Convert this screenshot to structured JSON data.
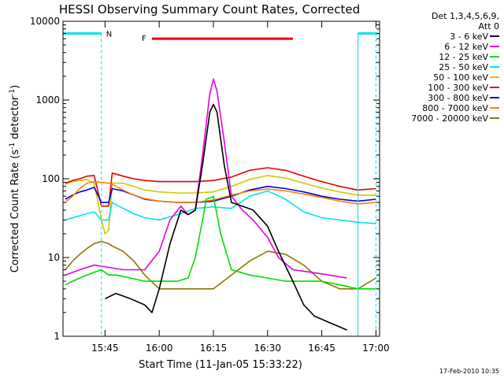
{
  "chart_data": {
    "type": "line",
    "title": "HESSI Observing Summary Count Rates, Corrected",
    "xlabel": "Start Time (11-Jan-05 15:33:22)",
    "ylabel_main": "Corrected Count Rate (s",
    "ylabel_exp1": "-1",
    "ylabel_mid": " detector",
    "ylabel_exp2": "-1",
    "ylabel_end": ")",
    "y_scale": "log",
    "ylim": [
      1,
      10000
    ],
    "xlim": [
      "15:33:22",
      "17:01:00"
    ],
    "y_ticks": [
      {
        "value": 1,
        "label": "1"
      },
      {
        "value": 10,
        "label": "10"
      },
      {
        "value": 100,
        "label": "100"
      },
      {
        "value": 1000,
        "label": "1000"
      },
      {
        "value": 10000,
        "label": "10000"
      }
    ],
    "x_ticks": [
      {
        "value": "15:45",
        "label": "15:45"
      },
      {
        "value": "16:00",
        "label": "16:00"
      },
      {
        "value": "16:15",
        "label": "16:15"
      },
      {
        "value": "16:30",
        "label": "16:30"
      },
      {
        "value": "16:45",
        "label": "16:45"
      },
      {
        "value": "17:00",
        "label": "17:00"
      }
    ],
    "legend": {
      "position": "right",
      "header_line1": "Det 1,3,4,5,6,9,",
      "header_line2": "Att 0",
      "entries": [
        {
          "label": "3 - 6 keV",
          "color": "#000000"
        },
        {
          "label": "6 - 12 keV",
          "color": "#e100e1"
        },
        {
          "label": "12 - 25 keV",
          "color": "#00dd00"
        },
        {
          "label": "25 - 50 keV",
          "color": "#00e5e5"
        },
        {
          "label": "50 - 100 keV",
          "color": "#d2c800"
        },
        {
          "label": "100 - 300 keV",
          "color": "#e80000"
        },
        {
          "label": "300 - 800 keV",
          "color": "#0000e0"
        },
        {
          "label": "800 - 7000 keV",
          "color": "#ff8000"
        },
        {
          "label": "7000 - 20000 keV",
          "color": "#8c7800"
        }
      ]
    },
    "series": [
      {
        "color": "#d2c800",
        "points": [
          [
            "15:34",
            85
          ],
          [
            "15:36",
            92
          ],
          [
            "15:38",
            95
          ],
          [
            "15:40",
            98
          ],
          [
            "15:42",
            88
          ],
          [
            "15:44",
            30
          ],
          [
            "15:45",
            20
          ],
          [
            "15:46",
            22
          ],
          [
            "15:47",
            88
          ],
          [
            "15:50",
            88
          ],
          [
            "15:53",
            80
          ],
          [
            "15:56",
            72
          ],
          [
            "16:00",
            68
          ],
          [
            "16:05",
            66
          ],
          [
            "16:10",
            66
          ],
          [
            "16:15",
            68
          ],
          [
            "16:20",
            80
          ],
          [
            "16:25",
            98
          ],
          [
            "16:30",
            110
          ],
          [
            "16:35",
            102
          ],
          [
            "16:40",
            88
          ],
          [
            "16:45",
            76
          ],
          [
            "16:50",
            68
          ],
          [
            "16:55",
            62
          ],
          [
            "17:00",
            62
          ]
        ]
      },
      {
        "color": "#e80000",
        "points": [
          [
            "15:34",
            88
          ],
          [
            "15:36",
            95
          ],
          [
            "15:38",
            100
          ],
          [
            "15:40",
            108
          ],
          [
            "15:42",
            110
          ],
          [
            "15:44",
            45
          ],
          [
            "15:46",
            45
          ],
          [
            "15:47",
            118
          ],
          [
            "15:50",
            108
          ],
          [
            "15:53",
            100
          ],
          [
            "15:56",
            95
          ],
          [
            "16:00",
            92
          ],
          [
            "16:05",
            92
          ],
          [
            "16:10",
            92
          ],
          [
            "16:15",
            95
          ],
          [
            "16:20",
            105
          ],
          [
            "16:25",
            128
          ],
          [
            "16:30",
            138
          ],
          [
            "16:35",
            128
          ],
          [
            "16:40",
            108
          ],
          [
            "16:45",
            92
          ],
          [
            "16:50",
            80
          ],
          [
            "16:55",
            72
          ],
          [
            "17:00",
            75
          ]
        ]
      },
      {
        "color": "#0000e0",
        "points": [
          [
            "15:34",
            55
          ],
          [
            "15:36",
            62
          ],
          [
            "15:38",
            68
          ],
          [
            "15:40",
            72
          ],
          [
            "15:42",
            78
          ],
          [
            "15:44",
            50
          ],
          [
            "15:46",
            50
          ],
          [
            "15:47",
            75
          ],
          [
            "15:50",
            70
          ],
          [
            "15:53",
            62
          ],
          [
            "15:56",
            55
          ],
          [
            "16:00",
            52
          ],
          [
            "16:05",
            50
          ],
          [
            "16:10",
            50
          ],
          [
            "16:15",
            52
          ],
          [
            "16:20",
            60
          ],
          [
            "16:25",
            72
          ],
          [
            "16:30",
            80
          ],
          [
            "16:35",
            75
          ],
          [
            "16:40",
            68
          ],
          [
            "16:45",
            60
          ],
          [
            "16:50",
            55
          ],
          [
            "16:55",
            52
          ],
          [
            "17:00",
            55
          ]
        ]
      },
      {
        "color": "#ff8000",
        "points": [
          [
            "15:34",
            50
          ],
          [
            "15:36",
            60
          ],
          [
            "15:38",
            75
          ],
          [
            "15:40",
            88
          ],
          [
            "15:42",
            92
          ],
          [
            "15:44",
            90
          ],
          [
            "15:46",
            88
          ],
          [
            "15:47",
            85
          ],
          [
            "15:50",
            72
          ],
          [
            "15:53",
            62
          ],
          [
            "15:56",
            56
          ],
          [
            "16:00",
            52
          ],
          [
            "16:05",
            50
          ],
          [
            "16:10",
            50
          ],
          [
            "16:15",
            54
          ],
          [
            "16:20",
            62
          ],
          [
            "16:25",
            70
          ],
          [
            "16:30",
            74
          ],
          [
            "16:35",
            70
          ],
          [
            "16:40",
            64
          ],
          [
            "16:45",
            58
          ],
          [
            "16:50",
            52
          ],
          [
            "16:55",
            48
          ],
          [
            "17:00",
            50
          ]
        ]
      },
      {
        "color": "#00e5e5",
        "points": [
          [
            "15:34",
            30
          ],
          [
            "15:36",
            32
          ],
          [
            "15:38",
            34
          ],
          [
            "15:40",
            36
          ],
          [
            "15:42",
            38
          ],
          [
            "15:44",
            30
          ],
          [
            "15:46",
            30
          ],
          [
            "15:47",
            50
          ],
          [
            "15:50",
            42
          ],
          [
            "15:53",
            36
          ],
          [
            "15:56",
            32
          ],
          [
            "16:00",
            30
          ],
          [
            "16:05",
            35
          ],
          [
            "16:10",
            42
          ],
          [
            "16:15",
            44
          ],
          [
            "16:20",
            42
          ],
          [
            "16:25",
            60
          ],
          [
            "16:30",
            70
          ],
          [
            "16:35",
            55
          ],
          [
            "16:40",
            38
          ],
          [
            "16:45",
            32
          ],
          [
            "16:50",
            30
          ],
          [
            "16:55",
            28
          ],
          [
            "17:00",
            27
          ]
        ]
      },
      {
        "color": "#8c7800",
        "points": [
          [
            "15:34",
            7
          ],
          [
            "15:36",
            9
          ],
          [
            "15:38",
            11
          ],
          [
            "15:40",
            13
          ],
          [
            "15:42",
            15
          ],
          [
            "15:44",
            16
          ],
          [
            "15:46",
            15
          ],
          [
            "15:47",
            14
          ],
          [
            "15:50",
            12
          ],
          [
            "15:53",
            9
          ],
          [
            "15:56",
            6
          ],
          [
            "16:00",
            4
          ],
          [
            "16:05",
            4
          ],
          [
            "16:10",
            4
          ],
          [
            "16:15",
            4
          ],
          [
            "16:20",
            6
          ],
          [
            "16:25",
            9
          ],
          [
            "16:30",
            12
          ],
          [
            "16:35",
            11
          ],
          [
            "16:40",
            8
          ],
          [
            "16:45",
            5
          ],
          [
            "16:50",
            4
          ],
          [
            "16:55",
            4
          ],
          [
            "17:00",
            5.5
          ]
        ]
      },
      {
        "color": "#00dd00",
        "points": [
          [
            "15:34",
            4.5
          ],
          [
            "15:36",
            5
          ],
          [
            "15:38",
            5.5
          ],
          [
            "15:40",
            6
          ],
          [
            "15:42",
            6.5
          ],
          [
            "15:44",
            7
          ],
          [
            "15:46",
            6
          ],
          [
            "15:48",
            6
          ],
          [
            "15:52",
            5.5
          ],
          [
            "15:56",
            5
          ],
          [
            "16:00",
            5
          ],
          [
            "16:05",
            5
          ],
          [
            "16:08",
            5.5
          ],
          [
            "16:10",
            10
          ],
          [
            "16:12",
            30
          ],
          [
            "16:13",
            55
          ],
          [
            "16:15",
            60
          ],
          [
            "16:17",
            20
          ],
          [
            "16:20",
            7
          ],
          [
            "16:25",
            6
          ],
          [
            "16:30",
            5.5
          ],
          [
            "16:35",
            5
          ],
          [
            "16:40",
            5
          ],
          [
            "16:45",
            5
          ],
          [
            "16:50",
            4.5
          ],
          [
            "16:55",
            4
          ],
          [
            "17:00",
            4
          ]
        ]
      },
      {
        "color": "#e100e1",
        "points": [
          [
            "15:34",
            6
          ],
          [
            "15:38",
            7
          ],
          [
            "15:42",
            8
          ],
          [
            "15:46",
            7.5
          ],
          [
            "15:50",
            7
          ],
          [
            "15:56",
            7
          ],
          [
            "16:00",
            12
          ],
          [
            "16:03",
            30
          ],
          [
            "16:06",
            45
          ],
          [
            "16:08",
            35
          ],
          [
            "16:10",
            40
          ],
          [
            "16:12",
            200
          ],
          [
            "16:14",
            1200
          ],
          [
            "16:15",
            1850
          ],
          [
            "16:16",
            1300
          ],
          [
            "16:18",
            300
          ],
          [
            "16:20",
            60
          ],
          [
            "16:23",
            40
          ],
          [
            "16:26",
            30
          ],
          [
            "16:30",
            18
          ],
          [
            "16:33",
            10
          ],
          [
            "16:37",
            7
          ],
          [
            "16:42",
            6.5
          ],
          [
            "16:47",
            6
          ],
          [
            "16:52",
            5.5
          ]
        ]
      },
      {
        "color": "#000000",
        "points": [
          [
            "15:45",
            3
          ],
          [
            "15:48",
            3.5
          ],
          [
            "15:52",
            3
          ],
          [
            "15:56",
            2.5
          ],
          [
            "15:58",
            2
          ],
          [
            "16:00",
            4
          ],
          [
            "16:03",
            15
          ],
          [
            "16:06",
            40
          ],
          [
            "16:08",
            35
          ],
          [
            "16:10",
            40
          ],
          [
            "16:12",
            150
          ],
          [
            "16:14",
            700
          ],
          [
            "16:15",
            880
          ],
          [
            "16:16",
            700
          ],
          [
            "16:18",
            150
          ],
          [
            "16:20",
            50
          ],
          [
            "16:23",
            45
          ],
          [
            "16:26",
            40
          ],
          [
            "16:30",
            25
          ],
          [
            "16:33",
            12
          ],
          [
            "16:37",
            5
          ],
          [
            "16:40",
            2.5
          ],
          [
            "16:43",
            1.8
          ],
          [
            "16:47",
            1.5
          ],
          [
            "16:52",
            1.2
          ]
        ]
      }
    ],
    "annotations": [
      {
        "label": "N",
        "color": "#00e5e5"
      },
      {
        "label": "F",
        "color": "#e80000"
      }
    ],
    "markers": {
      "night_start": "15:33:22",
      "night_end": "15:44",
      "night_level": 7000,
      "day_start": "16:55",
      "day_end": "17:00",
      "flare_start": "15:58",
      "flare_end": "16:37",
      "flare_level": 6000
    },
    "timestamp": "17-Feb-2010 10:35"
  },
  "colors": {
    "background": "#ffffff",
    "axes": "#000000"
  }
}
